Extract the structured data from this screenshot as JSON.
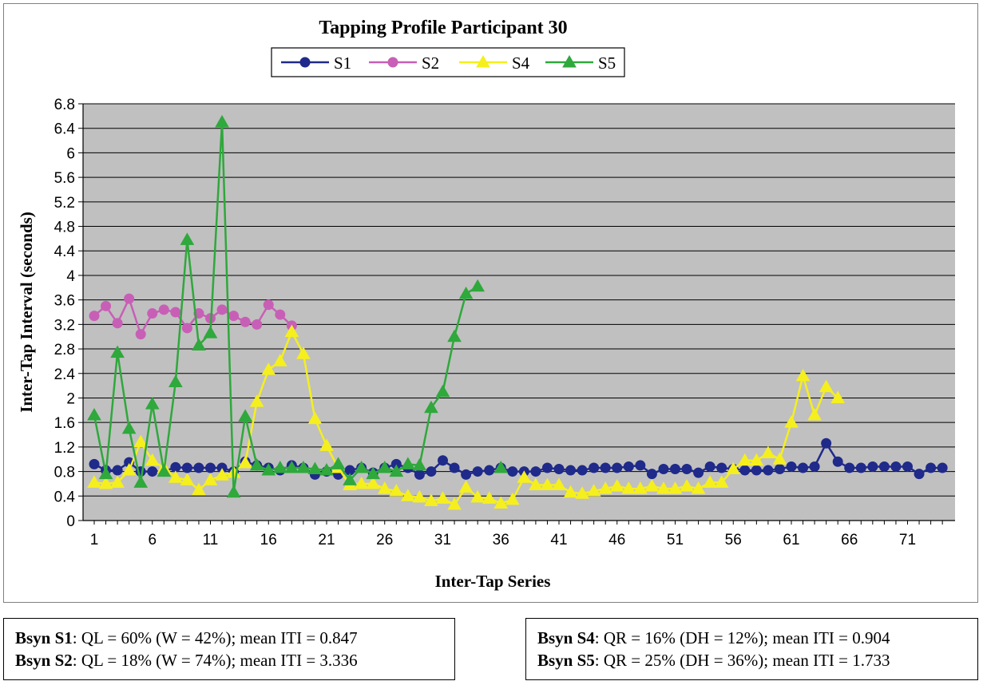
{
  "chart_data": {
    "type": "line",
    "title": "Tapping Profile Participant 30",
    "xlabel": "Inter-Tap Series",
    "ylabel": "Inter-Tap Interval (seconds)",
    "ylim": [
      0,
      6.8
    ],
    "yticks": [
      "0",
      "0.4",
      "0.8",
      "1.2",
      "1.6",
      "2",
      "2.4",
      "2.8",
      "3.2",
      "3.6",
      "4",
      "4.4",
      "4.8",
      "5.2",
      "5.6",
      "6",
      "6.4",
      "6.8"
    ],
    "xticks": [
      "1",
      "6",
      "11",
      "16",
      "21",
      "26",
      "31",
      "36",
      "41",
      "46",
      "51",
      "56",
      "61",
      "66",
      "71"
    ],
    "xlim": [
      1,
      74
    ],
    "grid": true,
    "legend_position": "top",
    "series": [
      {
        "name": "S1",
        "color": "#1f2a8a",
        "marker": "circle",
        "values": [
          0.92,
          0.82,
          0.82,
          0.95,
          0.8,
          0.8,
          0.8,
          0.87,
          0.86,
          0.86,
          0.86,
          0.86,
          0.8,
          0.96,
          0.9,
          0.86,
          0.82,
          0.9,
          0.86,
          0.75,
          0.8,
          0.75,
          0.82,
          0.86,
          0.78,
          0.86,
          0.92,
          0.86,
          0.75,
          0.8,
          0.98,
          0.86,
          0.75,
          0.8,
          0.82,
          0.86,
          0.8,
          0.8,
          0.8,
          0.86,
          0.84,
          0.82,
          0.82,
          0.86,
          0.86,
          0.86,
          0.88,
          0.9,
          0.76,
          0.84,
          0.84,
          0.84,
          0.78,
          0.88,
          0.86,
          0.84,
          0.82,
          0.82,
          0.82,
          0.84,
          0.88,
          0.86,
          0.88,
          1.26,
          0.96,
          0.86,
          0.86,
          0.88,
          0.88,
          0.88,
          0.88,
          0.76,
          0.86,
          0.86
        ]
      },
      {
        "name": "S2",
        "color": "#c85fb6",
        "marker": "circle",
        "values": [
          3.34,
          3.5,
          3.22,
          3.62,
          3.04,
          3.38,
          3.44,
          3.4,
          3.14,
          3.38,
          3.3,
          3.44,
          3.34,
          3.24,
          3.2,
          3.52,
          3.36,
          3.18
        ]
      },
      {
        "name": "S4",
        "color": "#f5ef1e",
        "marker": "triangle",
        "values": [
          0.62,
          0.6,
          0.62,
          0.82,
          1.28,
          0.98,
          0.86,
          0.7,
          0.66,
          0.5,
          0.66,
          0.74,
          0.78,
          0.94,
          1.94,
          2.46,
          2.6,
          3.08,
          2.72,
          1.66,
          1.22,
          0.86,
          0.58,
          0.6,
          0.6,
          0.52,
          0.48,
          0.4,
          0.38,
          0.32,
          0.36,
          0.26,
          0.54,
          0.38,
          0.36,
          0.28,
          0.34,
          0.7,
          0.58,
          0.58,
          0.58,
          0.46,
          0.44,
          0.48,
          0.52,
          0.56,
          0.52,
          0.52,
          0.56,
          0.52,
          0.52,
          0.56,
          0.52,
          0.62,
          0.62,
          0.84,
          0.98,
          0.98,
          1.1,
          1.0,
          1.6,
          2.36,
          1.72,
          2.18,
          2.0
        ]
      },
      {
        "name": "S5",
        "color": "#2fa83c",
        "marker": "triangle",
        "values": [
          1.72,
          0.76,
          2.74,
          1.5,
          0.62,
          1.9,
          0.8,
          2.26,
          4.58,
          2.86,
          3.06,
          6.5,
          0.46,
          1.7,
          0.9,
          0.82,
          0.86,
          0.86,
          0.86,
          0.84,
          0.82,
          0.92,
          0.66,
          0.86,
          0.76,
          0.86,
          0.8,
          0.92,
          0.9,
          1.84,
          2.1,
          3.0,
          3.7,
          3.82
        ]
      }
    ]
  },
  "legend_series_extra": {
    "S5_point_36": 0.86
  },
  "stats": {
    "left": [
      {
        "label": "Bsyn S1",
        "text": ": QL = 60% (W = 42%); mean ITI = 0.847"
      },
      {
        "label": "Bsyn S2",
        "text": ": QL = 18% (W = 74%); mean ITI = 3.336"
      }
    ],
    "right": [
      {
        "label": "Bsyn S4",
        "text": ": QR = 16% (DH = 12%); mean ITI = 0.904"
      },
      {
        "label": "Bsyn S5",
        "text": ": QR = 25% (DH = 36%); mean ITI = 1.733"
      }
    ]
  }
}
